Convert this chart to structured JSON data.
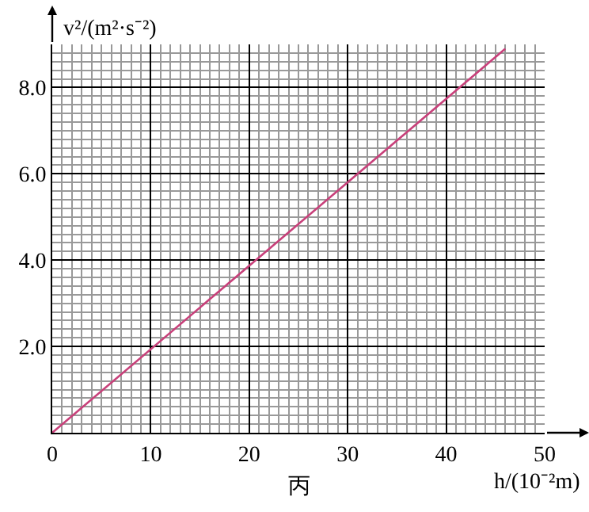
{
  "chart_data": {
    "type": "line",
    "xlabel": "h/(10⁻²m)",
    "ylabel": "v²/(m²·s⁻²)",
    "x": [
      0,
      46
    ],
    "series": [
      {
        "color": "#c8407a",
        "values": [
          0,
          8.9
        ]
      }
    ],
    "xlim": [
      0,
      50
    ],
    "ylim": [
      0,
      9
    ],
    "xticks": [
      0,
      10,
      20,
      30,
      40,
      50
    ],
    "yticks": [
      {
        "value": 2,
        "label": "2.0"
      },
      {
        "value": 4,
        "label": "4.0"
      },
      {
        "value": 6,
        "label": "6.0"
      },
      {
        "value": 8,
        "label": "8.0"
      }
    ],
    "grid": true,
    "marker": "none",
    "line_style": "solid",
    "annotations": [
      "丙"
    ]
  }
}
